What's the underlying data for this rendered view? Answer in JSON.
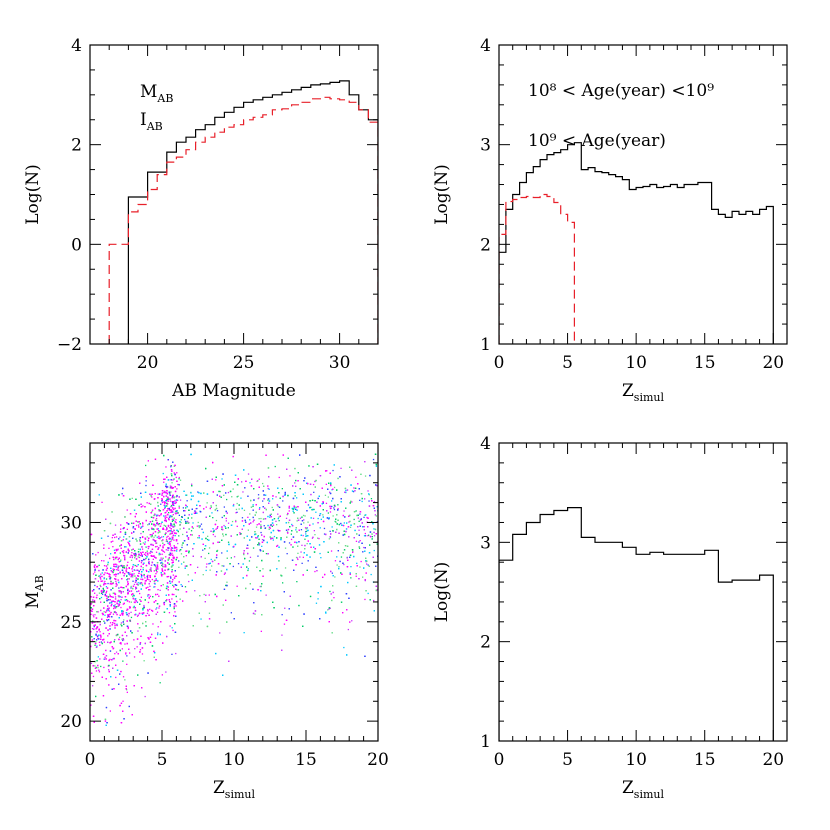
{
  "chart_data": [
    {
      "type": "line",
      "panel": "top-left",
      "xlabel": "AB Magnitude",
      "ylabel": "Log(N)",
      "xlim": [
        17,
        32
      ],
      "ylim": [
        -2,
        4
      ],
      "xticks": [
        "20",
        "25",
        "30"
      ],
      "yticks": [
        "−2",
        "0",
        "2",
        "4"
      ],
      "legend": [
        {
          "main": "M",
          "sub": "AB",
          "color": "#000000"
        },
        {
          "main": "I",
          "sub": "AB",
          "color": "#e8202a"
        }
      ],
      "series": [
        {
          "name": "M_AB",
          "style": "solid",
          "color": "#000000",
          "bin_edges": [
            19,
            20,
            21,
            21.5,
            22,
            22.5,
            23,
            23.5,
            24,
            24.5,
            25,
            25.5,
            26,
            26.5,
            27,
            27.5,
            28,
            28.5,
            29,
            29.5,
            30,
            30.5,
            31,
            31.5,
            32
          ],
          "values": [
            0.95,
            1.45,
            1.85,
            2.05,
            2.15,
            2.3,
            2.4,
            2.55,
            2.65,
            2.75,
            2.85,
            2.9,
            2.95,
            3.0,
            3.05,
            3.1,
            3.15,
            3.2,
            3.22,
            3.25,
            3.28,
            3.0,
            2.7,
            2.5
          ]
        },
        {
          "name": "I_AB",
          "style": "dashed",
          "color": "#e8202a",
          "bin_edges": [
            18,
            18.5,
            19,
            19.5,
            20,
            20.5,
            21,
            21.5,
            22,
            22.5,
            23,
            23.5,
            24,
            24.5,
            25,
            25.5,
            26,
            26.5,
            27,
            27.5,
            28,
            28.5,
            29,
            29.5,
            30,
            30.5,
            31,
            31.5,
            32
          ],
          "values": [
            0,
            0,
            0.65,
            0.8,
            1.1,
            1.4,
            1.65,
            1.75,
            1.9,
            2.05,
            2.15,
            2.25,
            2.35,
            2.4,
            2.5,
            2.55,
            2.6,
            2.7,
            2.72,
            2.8,
            2.85,
            2.92,
            2.95,
            2.92,
            2.9,
            2.85,
            2.7,
            2.45
          ]
        }
      ]
    },
    {
      "type": "line",
      "panel": "top-right",
      "xlabel": "Z",
      "xlabel_sub": "simul",
      "ylabel": "Log(N)",
      "xlim": [
        0,
        21
      ],
      "ylim": [
        1,
        4
      ],
      "xticks": [
        "0",
        "5",
        "10",
        "15",
        "20"
      ],
      "yticks": [
        "1",
        "2",
        "3",
        "4"
      ],
      "legend": [
        {
          "text": "10⁸ < Age(year) <10⁹",
          "color": "#000000"
        },
        {
          "text": "10⁹ < Age(year)",
          "color": "#e8202a"
        }
      ],
      "series": [
        {
          "name": "10⁸ < Age(year) <10⁹",
          "style": "solid",
          "color": "#000000",
          "bin_edges": [
            0,
            0.5,
            1,
            1.5,
            2,
            2.5,
            3,
            3.5,
            4,
            4.5,
            5,
            5.5,
            6,
            6.5,
            7,
            7.5,
            8,
            8.5,
            9,
            9.5,
            10,
            10.5,
            11,
            11.5,
            12,
            12.5,
            13,
            13.5,
            14,
            14.5,
            15,
            15.5,
            16,
            16.5,
            17,
            17.5,
            18,
            18.5,
            19,
            19.5,
            20
          ],
          "values": [
            1.92,
            2.35,
            2.5,
            2.62,
            2.72,
            2.78,
            2.85,
            2.9,
            2.92,
            2.95,
            3.0,
            3.02,
            2.75,
            2.77,
            2.73,
            2.72,
            2.7,
            2.68,
            2.65,
            2.55,
            2.57,
            2.58,
            2.6,
            2.57,
            2.58,
            2.6,
            2.57,
            2.6,
            2.6,
            2.62,
            2.62,
            2.35,
            2.3,
            2.27,
            2.33,
            2.3,
            2.33,
            2.3,
            2.35,
            2.38
          ]
        },
        {
          "name": "10⁹ < Age(year)",
          "style": "dashed",
          "color": "#e8202a",
          "bin_edges": [
            0,
            0.5,
            1,
            1.5,
            2,
            2.5,
            3,
            3.5,
            4,
            4.5,
            5,
            5.5
          ],
          "values": [
            2.1,
            2.43,
            2.45,
            2.47,
            2.48,
            2.47,
            2.5,
            2.48,
            2.42,
            2.3,
            2.22
          ]
        }
      ]
    },
    {
      "type": "scatter",
      "panel": "bottom-left",
      "xlabel": "Z",
      "xlabel_sub": "simul",
      "ylabel": "M",
      "ylabel_sub": "AB",
      "xlim": [
        0,
        20
      ],
      "ylim": [
        19,
        34
      ],
      "xticks": [
        "0",
        "5",
        "10",
        "15",
        "20"
      ],
      "yticks": [
        "20",
        "25",
        "30"
      ],
      "colors": [
        "#ff00ff",
        "#00c8ff",
        "#00cc66",
        "#3344ff",
        "#cc33ff",
        "#66dd88"
      ]
    },
    {
      "type": "line",
      "panel": "bottom-right",
      "xlabel": "Z",
      "xlabel_sub": "simul",
      "ylabel": "Log(N)",
      "xlim": [
        0,
        21
      ],
      "ylim": [
        1,
        4
      ],
      "xticks": [
        "0",
        "5",
        "10",
        "15",
        "20"
      ],
      "yticks": [
        "1",
        "2",
        "3",
        "4"
      ],
      "series": [
        {
          "style": "solid",
          "color": "#000000",
          "bin_edges": [
            0,
            1,
            2,
            3,
            4,
            5,
            6,
            7,
            8,
            9,
            10,
            11,
            12,
            13,
            14,
            15,
            16,
            17,
            18,
            19,
            20
          ],
          "values": [
            2.82,
            3.08,
            3.2,
            3.28,
            3.32,
            3.35,
            3.05,
            3.0,
            3.0,
            2.95,
            2.88,
            2.9,
            2.88,
            2.88,
            2.88,
            2.92,
            2.6,
            2.62,
            2.62,
            2.67
          ]
        }
      ]
    }
  ]
}
